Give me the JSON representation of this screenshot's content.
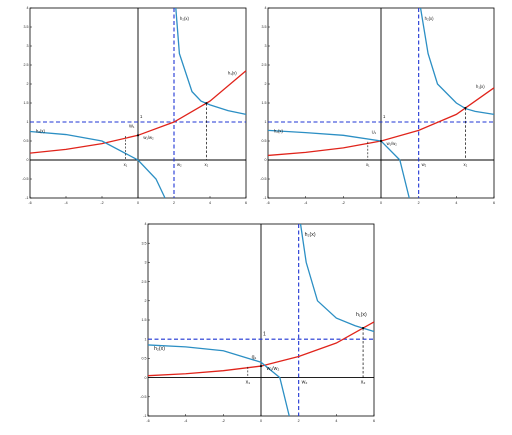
{
  "colors": {
    "blue_curve": "#2c8fc4",
    "red_curve": "#e0241b",
    "dashed": "#1f35d4",
    "axis": "#000000"
  },
  "chart_data": [
    {
      "type": "line",
      "title": "",
      "xlabel": "",
      "ylabel": "",
      "xlim": [
        -6,
        6
      ],
      "ylim": [
        -1,
        4
      ],
      "x_ticks": [
        "-6",
        "-4",
        "-2",
        "0",
        "2",
        "4",
        "6"
      ],
      "y_ticks": [
        "-1",
        "-0.5",
        "0",
        "0.5",
        "1",
        "1.5",
        "2",
        "2.5",
        "3",
        "3.5",
        "4"
      ],
      "grid": false,
      "pole": 2,
      "curve_labels": {
        "blue_upper": "h₂(x)",
        "red": "h₁(x)",
        "blue_left": "h₂(x)"
      },
      "annotations": {
        "one": "1",
        "low_intersection": "w₁/w₂",
        "mid_label": "W₁",
        "x_point_1": "x₁",
        "x_point_2": "w₂",
        "x_point_3": "x₂"
      },
      "series": [
        {
          "name": "h₁(x)",
          "x": [
            -6,
            -4,
            -2,
            0,
            2,
            4,
            6
          ],
          "y": [
            0.18,
            0.28,
            0.43,
            0.65,
            1.0,
            1.55,
            2.35
          ]
        },
        {
          "name": "h₂(x)",
          "x": [
            -6,
            -4,
            -2,
            0,
            1,
            1.5,
            2.1,
            2.3,
            3,
            3.5,
            4,
            5,
            6
          ],
          "y": [
            0.75,
            0.67,
            0.5,
            0.0,
            -0.5,
            -1.0,
            4.0,
            2.8,
            1.8,
            1.55,
            1.45,
            1.3,
            1.2
          ]
        }
      ]
    },
    {
      "type": "line",
      "title": "",
      "xlabel": "",
      "ylabel": "",
      "xlim": [
        -6,
        6
      ],
      "ylim": [
        -1,
        4
      ],
      "x_ticks": [
        "-6",
        "-4",
        "-2",
        "0",
        "2",
        "4",
        "6"
      ],
      "y_ticks": [
        "-1",
        "-0.5",
        "0",
        "0.5",
        "1",
        "1.5",
        "2",
        "2.5",
        "3",
        "3.5",
        "4"
      ],
      "grid": false,
      "pole": 2,
      "curve_labels": {
        "blue_upper": "h₂(x)",
        "red": "h₁(x)",
        "blue_left": "h₂(x)"
      },
      "annotations": {
        "one": "1",
        "low_intersection": "w₁/w₂",
        "mid_label": "U₁",
        "x_point_1": "x₁",
        "x_point_2": "w₂",
        "x_point_3": "x₂"
      },
      "series": [
        {
          "name": "h₁(x)",
          "x": [
            -6,
            -4,
            -2,
            0,
            2,
            4,
            6
          ],
          "y": [
            0.12,
            0.2,
            0.32,
            0.5,
            0.78,
            1.2,
            1.9
          ]
        },
        {
          "name": "h₂(x)",
          "x": [
            -6,
            -4,
            -2,
            0,
            1,
            1.5,
            2.1,
            2.5,
            3,
            4,
            4.5,
            5,
            6
          ],
          "y": [
            0.78,
            0.72,
            0.65,
            0.5,
            0.0,
            -1.0,
            4.0,
            2.8,
            2.0,
            1.5,
            1.35,
            1.28,
            1.2
          ]
        }
      ]
    },
    {
      "type": "line",
      "title": "",
      "xlabel": "",
      "ylabel": "",
      "xlim": [
        -6,
        6
      ],
      "ylim": [
        -1,
        4
      ],
      "x_ticks": [
        "-6",
        "-4",
        "-2",
        "0",
        "2",
        "4",
        "6"
      ],
      "y_ticks": [
        "-1",
        "-0.5",
        "0",
        "0.5",
        "1",
        "1.5",
        "2",
        "2.5",
        "3",
        "3.5",
        "4"
      ],
      "grid": false,
      "pole": 2,
      "curve_labels": {
        "blue_upper": "h₂(x)",
        "red": "h₁(x)",
        "blue_left": "h₂(x)"
      },
      "annotations": {
        "one": "1",
        "low_intersection": "w₁/w₂",
        "mid_label": "q₁",
        "x_point_1": "x₁",
        "x_point_2": "w₂",
        "x_point_3": "x₂"
      },
      "series": [
        {
          "name": "h₁(x)",
          "x": [
            -6,
            -4,
            -2,
            0,
            2,
            4,
            6
          ],
          "y": [
            0.05,
            0.1,
            0.18,
            0.3,
            0.55,
            0.9,
            1.45
          ]
        },
        {
          "name": "h₂(x)",
          "x": [
            -6,
            -4,
            -2,
            0,
            1,
            1.5,
            2.1,
            2.4,
            3,
            4,
            5,
            6
          ],
          "y": [
            0.85,
            0.8,
            0.7,
            0.4,
            0.0,
            -1.0,
            4.0,
            3.0,
            2.0,
            1.55,
            1.35,
            1.2
          ]
        }
      ]
    }
  ]
}
